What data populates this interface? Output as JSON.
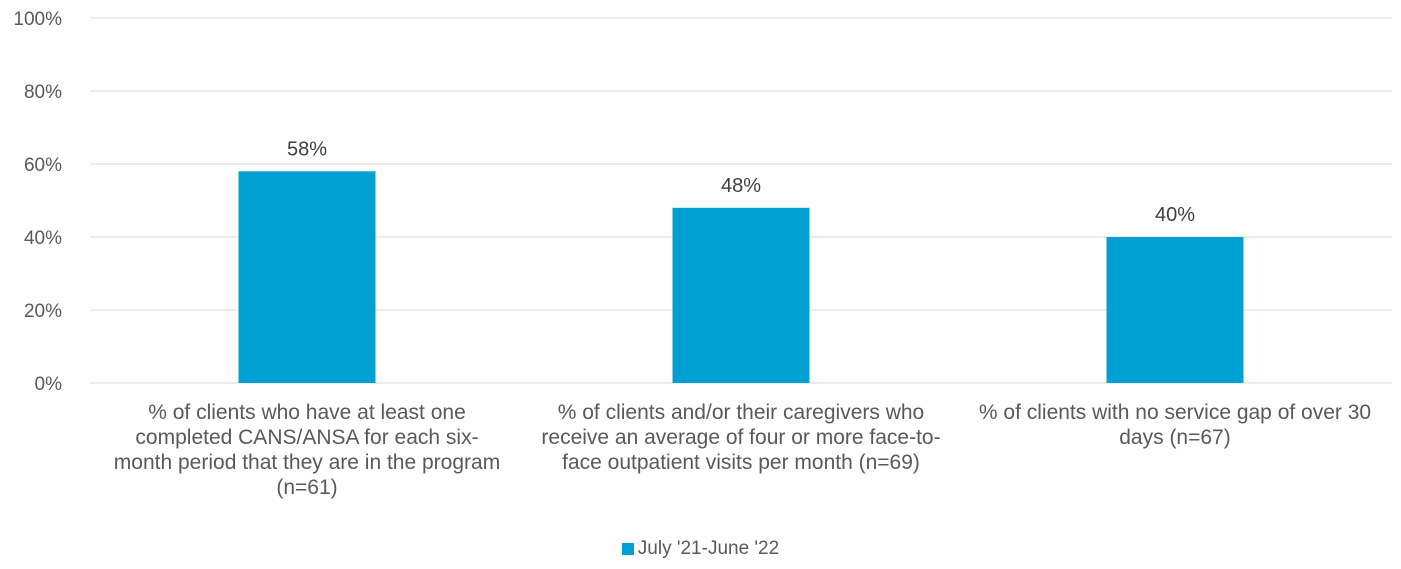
{
  "chart_data": {
    "type": "bar",
    "categories": [
      "% of clients who have at least one completed CANS/ANSA for each six-month period that they are in the program (n=61)",
      "% of clients and/or their caregivers who receive an average of four or more face-to-face outpatient visits per month (n=69)",
      "% of clients with no service gap of over 30 days (n=67)"
    ],
    "series": [
      {
        "name": "July '21-June '22",
        "values": [
          58,
          48,
          40
        ],
        "color": "#00a0d2"
      }
    ],
    "data_labels": [
      "58%",
      "48%",
      "40%"
    ],
    "y_ticks": [
      "0%",
      "20%",
      "40%",
      "60%",
      "80%",
      "100%"
    ],
    "ylim": [
      0,
      100
    ],
    "grid": true,
    "legend_position": "bottom",
    "title": "",
    "xlabel": "",
    "ylabel": ""
  }
}
